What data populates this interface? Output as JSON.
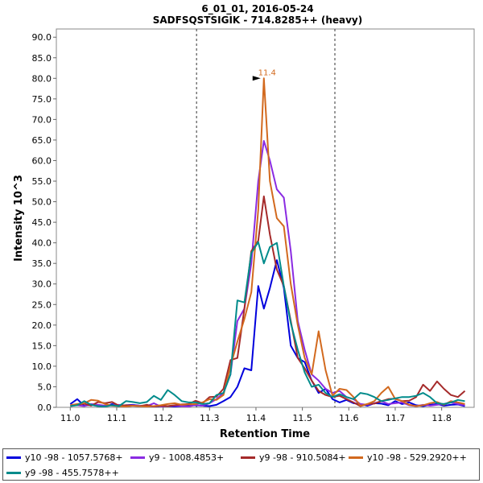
{
  "chart_data": {
    "type": "line",
    "title": "6_01_01, 2016-05-24",
    "subtitle": "SADFSQSTSIGIK - 714.8285++ (heavy)",
    "xlabel": "Retention Time",
    "ylabel": "Intensity 10^3",
    "xlim": [
      10.97,
      11.87
    ],
    "ylim": [
      0,
      92
    ],
    "xticks": [
      "11.0",
      "11.1",
      "11.2",
      "11.3",
      "11.4",
      "11.5",
      "11.6",
      "11.7",
      "11.8"
    ],
    "yticks": [
      "0.0",
      "5.0",
      "10.0",
      "15.0",
      "20.0",
      "25.0",
      "30.0",
      "35.0",
      "40.0",
      "45.0",
      "50.0",
      "55.0",
      "60.0",
      "65.0",
      "70.0",
      "75.0",
      "80.0",
      "85.0",
      "90.0"
    ],
    "integration_bounds": [
      11.272,
      11.57
    ],
    "peak_annotation": {
      "x": 11.417,
      "y": 80.0,
      "label": "11.4"
    },
    "x": [
      11.0,
      11.015,
      11.03,
      11.045,
      11.06,
      11.075,
      11.09,
      11.105,
      11.12,
      11.135,
      11.15,
      11.165,
      11.18,
      11.195,
      11.21,
      11.225,
      11.24,
      11.255,
      11.27,
      11.285,
      11.3,
      11.315,
      11.33,
      11.345,
      11.36,
      11.375,
      11.39,
      11.405,
      11.417,
      11.43,
      11.445,
      11.46,
      11.475,
      11.49,
      11.505,
      11.52,
      11.535,
      11.55,
      11.565,
      11.58,
      11.595,
      11.61,
      11.625,
      11.64,
      11.655,
      11.67,
      11.685,
      11.7,
      11.715,
      11.73,
      11.745,
      11.76,
      11.775,
      11.79,
      11.805,
      11.82,
      11.835,
      11.85
    ],
    "series": [
      {
        "name": "y10 -98 - 1057.5768+",
        "color": "#0000dd",
        "values": [
          0.8,
          2.0,
          0.4,
          0.6,
          0.3,
          0.2,
          0.8,
          0.3,
          0.5,
          0.6,
          0.4,
          0.3,
          0.2,
          0.3,
          0.3,
          0.2,
          0.3,
          0.4,
          0.5,
          0.4,
          0.3,
          0.6,
          1.5,
          2.5,
          5.0,
          9.5,
          9.0,
          29.5,
          24.0,
          29.0,
          35.8,
          29.0,
          15.0,
          12.0,
          11.0,
          6.5,
          3.5,
          4.5,
          2.0,
          1.2,
          1.8,
          1.0,
          0.8,
          0.4,
          1.0,
          0.9,
          0.5,
          1.5,
          0.8,
          1.2,
          0.5,
          0.3,
          0.6,
          0.8,
          0.4,
          0.6,
          0.7,
          0.3
        ]
      },
      {
        "name": "y9 - 1008.4853+",
        "color": "#8a2be2",
        "values": [
          0.6,
          0.5,
          0.3,
          0.8,
          0.6,
          0.4,
          0.5,
          0.6,
          0.4,
          0.5,
          0.4,
          0.3,
          1.0,
          0.2,
          0.3,
          0.4,
          0.3,
          0.2,
          0.6,
          0.4,
          1.0,
          2.0,
          3.5,
          8.0,
          21.0,
          24.0,
          35.0,
          55.0,
          64.8,
          60.0,
          53.0,
          51.0,
          38.0,
          21.0,
          14.0,
          8.0,
          6.5,
          4.5,
          3.5,
          4.0,
          2.5,
          2.0,
          0.8,
          0.6,
          1.0,
          1.5,
          0.8,
          1.0,
          1.2,
          0.5,
          0.3,
          0.6,
          0.4,
          0.6,
          0.8,
          1.2,
          0.8,
          0.5
        ]
      },
      {
        "name": "y9 -98 - 910.5084+",
        "color": "#a52a2a",
        "values": [
          0.3,
          0.6,
          0.9,
          0.4,
          1.3,
          1.0,
          1.3,
          0.4,
          0.5,
          0.4,
          0.3,
          0.6,
          0.2,
          0.4,
          0.3,
          0.5,
          0.7,
          0.8,
          1.6,
          1.0,
          2.5,
          2.6,
          4.5,
          11.5,
          12.0,
          24.0,
          38.0,
          40.5,
          51.3,
          42.0,
          33.5,
          29.5,
          21.0,
          12.0,
          9.5,
          6.5,
          4.0,
          3.0,
          2.5,
          2.8,
          2.0,
          1.2,
          0.3,
          0.8,
          0.9,
          1.5,
          2.0,
          2.1,
          1.5,
          1.6,
          2.5,
          5.5,
          4.0,
          6.3,
          4.5,
          3.0,
          2.5,
          4.0
        ]
      },
      {
        "name": "y10 -98 - 529.2920++",
        "color": "#d2691e",
        "values": [
          0.5,
          0.8,
          1.0,
          1.8,
          1.6,
          0.8,
          0.4,
          0.3,
          0.2,
          0.4,
          0.3,
          0.2,
          0.3,
          0.5,
          0.8,
          1.0,
          0.6,
          0.7,
          0.8,
          1.2,
          2.0,
          1.8,
          3.0,
          10.0,
          16.0,
          21.5,
          28.0,
          48.0,
          80.0,
          55.0,
          46.0,
          44.0,
          30.0,
          20.0,
          12.0,
          8.0,
          18.5,
          9.0,
          2.8,
          4.5,
          4.2,
          2.5,
          0.4,
          0.8,
          1.5,
          3.5,
          5.0,
          2.0,
          1.5,
          0.6,
          0.3,
          0.5,
          1.0,
          1.3,
          0.6,
          1.5,
          1.2,
          0.8
        ]
      },
      {
        "name": "y9 -98 - 455.7578++",
        "color": "#008b8b",
        "values": [
          0.3,
          0.5,
          1.5,
          0.6,
          0.3,
          0.2,
          0.5,
          0.3,
          1.5,
          1.3,
          1.0,
          1.3,
          2.8,
          1.8,
          4.2,
          3.0,
          1.5,
          1.2,
          1.2,
          0.8,
          1.0,
          3.0,
          3.5,
          8.0,
          26.0,
          25.5,
          37.5,
          40.2,
          35.0,
          39.0,
          40.0,
          29.5,
          20.5,
          14.0,
          8.5,
          5.0,
          5.5,
          3.5,
          2.5,
          3.2,
          2.5,
          2.0,
          3.5,
          3.2,
          2.5,
          1.5,
          1.8,
          2.2,
          2.5,
          2.5,
          2.8,
          3.5,
          2.5,
          1.0,
          0.8,
          1.2,
          1.8,
          1.5
        ]
      }
    ]
  }
}
